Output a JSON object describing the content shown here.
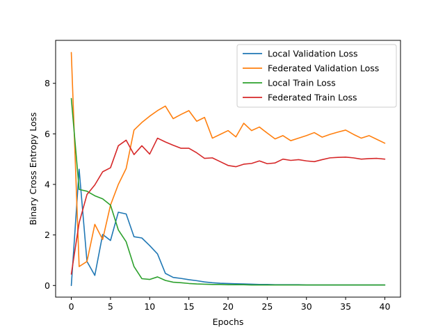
{
  "chart_data": {
    "type": "line",
    "xlabel": "Epochs",
    "ylabel": "Binary Cross Entropy Loss",
    "xlim": [
      -2,
      42
    ],
    "ylim": [
      -0.46,
      9.7
    ],
    "xticks": [
      0,
      5,
      10,
      15,
      20,
      25,
      30,
      35,
      40
    ],
    "yticks": [
      0,
      2,
      4,
      6,
      8
    ],
    "grid": false,
    "legend_position": "top-right",
    "x": [
      0,
      1,
      2,
      3,
      4,
      5,
      6,
      7,
      8,
      9,
      10,
      11,
      12,
      13,
      14,
      15,
      16,
      17,
      18,
      19,
      20,
      21,
      22,
      23,
      24,
      25,
      26,
      27,
      28,
      29,
      30,
      31,
      32,
      33,
      34,
      35,
      36,
      37,
      38,
      39,
      40
    ],
    "series": [
      {
        "name": "Local Validation Loss",
        "color": "#1f77b4",
        "values": [
          0.0,
          4.6,
          0.95,
          0.4,
          2.02,
          1.78,
          2.9,
          2.83,
          1.93,
          1.88,
          1.58,
          1.25,
          0.48,
          0.32,
          0.28,
          0.23,
          0.19,
          0.14,
          0.11,
          0.09,
          0.08,
          0.07,
          0.06,
          0.05,
          0.04,
          0.04,
          0.03,
          0.03,
          0.03,
          0.03,
          0.02,
          0.02,
          0.02,
          0.02,
          0.02,
          0.02,
          0.02,
          0.02,
          0.02,
          0.02,
          0.02
        ]
      },
      {
        "name": "Federated Validation Loss",
        "color": "#ff7f0e",
        "values": [
          9.22,
          0.75,
          0.95,
          2.42,
          1.82,
          3.18,
          4.0,
          4.63,
          6.15,
          6.45,
          6.7,
          6.92,
          7.1,
          6.6,
          6.77,
          6.92,
          6.5,
          6.65,
          5.83,
          5.98,
          6.13,
          5.88,
          6.42,
          6.13,
          6.27,
          6.03,
          5.8,
          5.93,
          5.73,
          5.83,
          5.93,
          6.05,
          5.87,
          5.98,
          6.07,
          6.15,
          5.98,
          5.83,
          5.93,
          5.78,
          5.63
        ]
      },
      {
        "name": "Local Train Loss",
        "color": "#2ca02c",
        "values": [
          7.4,
          3.8,
          3.73,
          3.55,
          3.43,
          3.18,
          2.2,
          1.73,
          0.75,
          0.27,
          0.24,
          0.34,
          0.2,
          0.13,
          0.11,
          0.08,
          0.06,
          0.05,
          0.04,
          0.04,
          0.03,
          0.03,
          0.03,
          0.02,
          0.02,
          0.02,
          0.02,
          0.02,
          0.02,
          0.02,
          0.02,
          0.02,
          0.02,
          0.02,
          0.02,
          0.02,
          0.02,
          0.02,
          0.02,
          0.02,
          0.02
        ]
      },
      {
        "name": "Federated Train Loss",
        "color": "#d62728",
        "values": [
          0.45,
          2.48,
          3.6,
          3.98,
          4.5,
          4.66,
          5.53,
          5.75,
          5.18,
          5.53,
          5.2,
          5.83,
          5.68,
          5.55,
          5.43,
          5.43,
          5.25,
          5.03,
          5.05,
          4.9,
          4.75,
          4.7,
          4.8,
          4.83,
          4.93,
          4.82,
          4.85,
          5.0,
          4.95,
          4.98,
          4.93,
          4.9,
          4.98,
          5.05,
          5.07,
          5.08,
          5.05,
          5.0,
          5.02,
          5.03,
          5.0
        ]
      }
    ]
  }
}
